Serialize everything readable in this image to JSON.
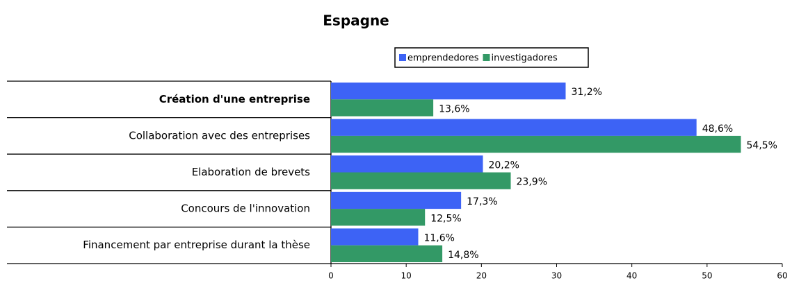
{
  "chart_data": {
    "type": "hbar",
    "title": "Espagne",
    "categories": [
      "Création d'une entreprise",
      "Collaboration avec des entreprises",
      "Elaboration de brevets",
      "Concours de l'innovation",
      "Financement par entreprise durant la thèse"
    ],
    "bold_category_index": 0,
    "series": [
      {
        "name": "emprendedores",
        "color": "#3d63f5",
        "values": [
          31.2,
          48.6,
          20.2,
          17.3,
          11.6
        ],
        "value_labels": [
          "31,2%",
          "48,6%",
          "20,2%",
          "17,3%",
          "11,6%"
        ]
      },
      {
        "name": "investigadores",
        "color": "#339966",
        "values": [
          13.6,
          54.5,
          23.9,
          12.5,
          14.8
        ],
        "value_labels": [
          "13,6%",
          "54,5%",
          "23,9%",
          "12,5%",
          "14,8%"
        ]
      }
    ],
    "xlim": [
      0,
      60
    ],
    "xticks": [
      0,
      10,
      20,
      30,
      40,
      50,
      60
    ],
    "legend": "top"
  }
}
